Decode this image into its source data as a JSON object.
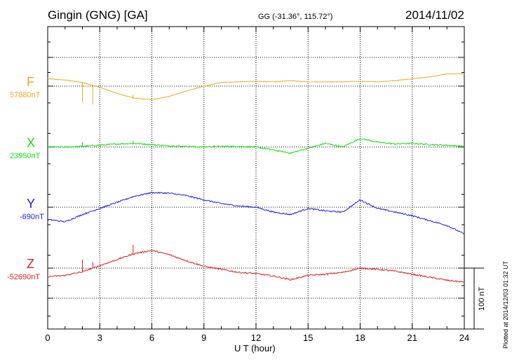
{
  "header": {
    "title": "Gingin (GNG)  [GA]",
    "coords": "GG (-31.36°, 115.72°)",
    "date": "2014/11/02"
  },
  "footer": {
    "plotted": "Plotted at 2014/12/03 01:32 UT"
  },
  "scale": {
    "label": "100 nT",
    "value_nT": 100
  },
  "chart_data": {
    "type": "line",
    "title": "Gingin (GNG)  [GA]",
    "xlabel": "U T (hour)",
    "xlim": [
      0,
      24
    ],
    "x_ticks": [
      "0",
      "3",
      "6",
      "9",
      "12",
      "15",
      "18",
      "21",
      "24"
    ],
    "grid": true,
    "series": [
      {
        "name": "F",
        "baseline_label": "57880nT",
        "color": "#f0a820",
        "x": [
          0,
          1,
          2,
          3,
          4,
          5,
          6,
          7,
          8,
          9,
          10,
          11,
          12,
          13,
          14,
          15,
          16,
          17,
          18,
          19,
          20,
          21,
          22,
          23,
          24
        ],
        "values": [
          12,
          10,
          6,
          -2,
          -12,
          -20,
          -22,
          -17,
          -8,
          0,
          6,
          7,
          8,
          7,
          9,
          7,
          7,
          7,
          8,
          7,
          9,
          12,
          15,
          20,
          20
        ],
        "spikes": [
          [
            2.0,
            -26
          ],
          [
            2.6,
            -30
          ],
          [
            4.9,
            -14
          ]
        ]
      },
      {
        "name": "X",
        "baseline_label": "23950nT",
        "color": "#10e010",
        "x": [
          0,
          1,
          2,
          3,
          4,
          5,
          6,
          7,
          8,
          9,
          10,
          11,
          12,
          13,
          14,
          15,
          16,
          17,
          18,
          19,
          20,
          21,
          22,
          23,
          24
        ],
        "values": [
          0,
          0,
          1,
          3,
          5,
          6,
          4,
          2,
          1,
          0,
          1,
          1,
          0,
          -5,
          -10,
          -2,
          6,
          0,
          14,
          8,
          5,
          6,
          4,
          3,
          1
        ],
        "spikes": [
          [
            2.0,
            8
          ],
          [
            4.9,
            10
          ]
        ]
      },
      {
        "name": "Y",
        "baseline_label": "-690nT",
        "color": "#2020e0",
        "x": [
          0,
          1,
          2,
          3,
          4,
          5,
          6,
          7,
          8,
          9,
          10,
          11,
          12,
          13,
          14,
          15,
          16,
          17,
          18,
          19,
          20,
          21,
          22,
          23,
          24
        ],
        "values": [
          -20,
          -24,
          -12,
          -2,
          8,
          18,
          24,
          23,
          19,
          12,
          6,
          2,
          0,
          -8,
          -12,
          -2,
          -6,
          -8,
          12,
          -2,
          -8,
          -14,
          -22,
          -30,
          -44
        ],
        "spikes": []
      },
      {
        "name": "Z",
        "baseline_label": "-52690nT",
        "color": "#e02020",
        "x": [
          0,
          1,
          2,
          3,
          4,
          5,
          6,
          7,
          8,
          9,
          10,
          11,
          12,
          13,
          14,
          15,
          16,
          17,
          18,
          19,
          20,
          21,
          22,
          23,
          24
        ],
        "values": [
          -14,
          -12,
          -6,
          4,
          14,
          24,
          29,
          22,
          12,
          3,
          -2,
          -7,
          -9,
          -13,
          -19,
          -12,
          -10,
          -7,
          0,
          -2,
          -5,
          -10,
          -15,
          -20,
          -23
        ],
        "spikes": [
          [
            2.0,
            14
          ],
          [
            2.6,
            10
          ],
          [
            4.9,
            38
          ]
        ]
      }
    ]
  }
}
